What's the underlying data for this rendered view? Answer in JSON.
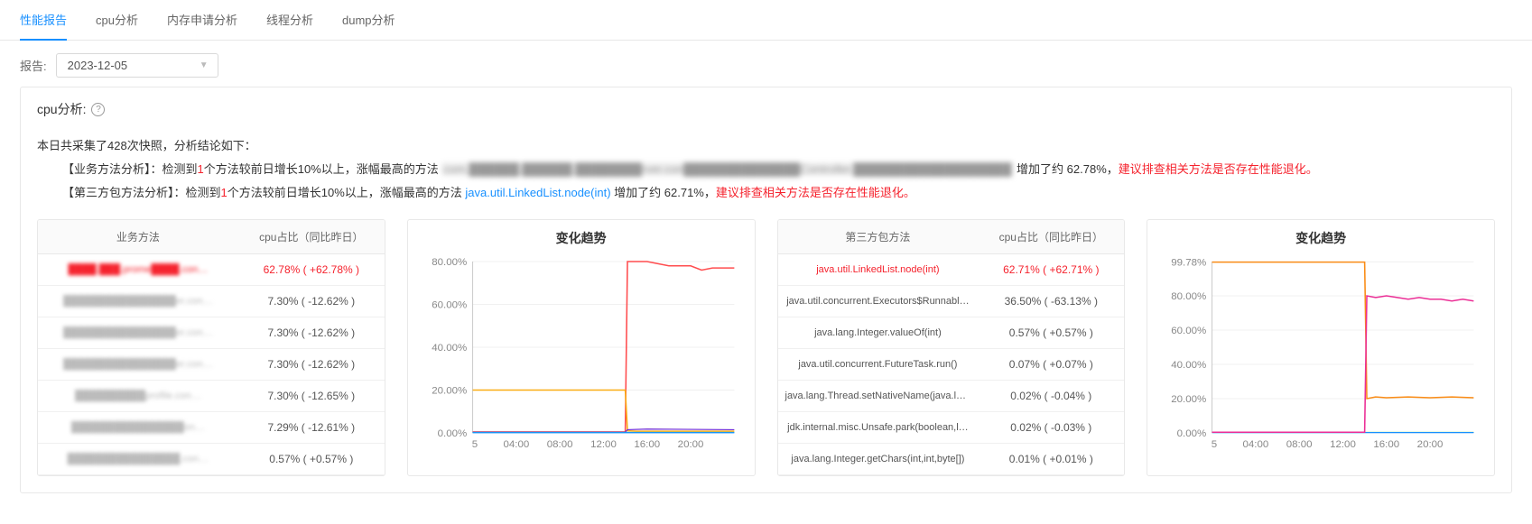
{
  "tabs": [
    {
      "label": "性能报告",
      "active": true
    },
    {
      "label": "cpu分析",
      "active": false
    },
    {
      "label": "内存申请分析",
      "active": false
    },
    {
      "label": "线程分析",
      "active": false
    },
    {
      "label": "dump分析",
      "active": false
    }
  ],
  "report": {
    "label": "报告:",
    "date": "2023-12-05"
  },
  "cpu_panel": {
    "title": "cpu分析:",
    "summary_intro": "本日共采集了428次快照，分析结论如下：",
    "biz_prefix": "【业务方法分析】：检测到",
    "biz_count": "1",
    "biz_mid": "个方法较前日增长10%以上，涨幅最高的方法 ",
    "biz_blur": "com.██████.██████.████████rver.con██████████████Controller.███████████████████",
    "biz_pct": " 增加了约 62.78%，",
    "biz_warn": "建议排查相关方法是否存在性能退化。",
    "third_prefix": "【第三方包方法分析】：检测到",
    "third_count": "1",
    "third_mid": "个方法较前日增长10%以上，涨幅最高的方法 ",
    "third_method": "java.util.LinkedList.node(int)",
    "third_pct": " 增加了约 62.71%，",
    "third_warn": "建议排查相关方法是否存在性能退化。"
  },
  "table1": {
    "col1": "业务方法",
    "col2": "cpu占比（同比昨日）",
    "rows": [
      {
        "method": "████.███.prome████.con…",
        "pct": "62.78% ( +62.78% )",
        "hl": true,
        "blur": true
      },
      {
        "method": "████████████████er.con…",
        "pct": "7.30% ( -12.62% )",
        "hl": false,
        "blur": true
      },
      {
        "method": "████████████████er.con…",
        "pct": "7.30% ( -12.62% )",
        "hl": false,
        "blur": true
      },
      {
        "method": "████████████████er.con…",
        "pct": "7.30% ( -12.62% )",
        "hl": false,
        "blur": true
      },
      {
        "method": "██████████profile.con…",
        "pct": "7.30% ( -12.65% )",
        "hl": false,
        "blur": true
      },
      {
        "method": "████████████████on…",
        "pct": "7.29% ( -12.61% )",
        "hl": false,
        "blur": true
      },
      {
        "method": "████████████████.con…",
        "pct": "0.57% ( +0.57% )",
        "hl": false,
        "blur": true
      }
    ]
  },
  "chart1": {
    "title": "变化趋势",
    "ylim": [
      0,
      80
    ],
    "ytick_step": 20,
    "yformat": "%",
    "xticks": [
      "5",
      "04:00",
      "08:00",
      "12:00",
      "16:00",
      "20:00"
    ],
    "x_domain": [
      0,
      24
    ],
    "plot_bg": "#ffffff",
    "grid_color": "#f0f0f0",
    "series": [
      {
        "color": "#ff4d4f",
        "width": 1.5,
        "points": [
          [
            0,
            0.5
          ],
          [
            14,
            0.5
          ],
          [
            14.2,
            80
          ],
          [
            15,
            80
          ],
          [
            16,
            80
          ],
          [
            17,
            79
          ],
          [
            18,
            78
          ],
          [
            19,
            78
          ],
          [
            20,
            78
          ],
          [
            21,
            76
          ],
          [
            22,
            77
          ],
          [
            23,
            77
          ],
          [
            24,
            77
          ]
        ]
      },
      {
        "color": "#faad14",
        "width": 1.5,
        "points": [
          [
            0,
            20
          ],
          [
            2,
            20
          ],
          [
            4,
            20
          ],
          [
            6,
            20
          ],
          [
            8,
            20
          ],
          [
            10,
            20
          ],
          [
            12,
            20
          ],
          [
            14,
            20
          ],
          [
            14.2,
            1
          ],
          [
            15,
            0.8
          ],
          [
            24,
            0.8
          ]
        ]
      },
      {
        "color": "#722ed1",
        "width": 1.2,
        "points": [
          [
            0,
            0.3
          ],
          [
            14,
            0.3
          ],
          [
            14.2,
            1.5
          ],
          [
            16,
            1.8
          ],
          [
            24,
            1.5
          ]
        ]
      },
      {
        "color": "#13c2c2",
        "width": 1.2,
        "points": [
          [
            0,
            0.2
          ],
          [
            24,
            0.2
          ]
        ]
      },
      {
        "color": "#1890ff",
        "width": 1.2,
        "points": [
          [
            0,
            0.1
          ],
          [
            24,
            0.1
          ]
        ]
      }
    ]
  },
  "table2": {
    "col1": "第三方包方法",
    "col2": "cpu占比（同比昨日）",
    "rows": [
      {
        "method": "java.util.LinkedList.node(int)",
        "pct": "62.71% ( +62.71% )",
        "hl": true
      },
      {
        "method": "java.util.concurrent.Executors$Runnabl…",
        "pct": "36.50% ( -63.13% )",
        "hl": false
      },
      {
        "method": "java.lang.Integer.valueOf(int)",
        "pct": "0.57% ( +0.57% )",
        "hl": false
      },
      {
        "method": "java.util.concurrent.FutureTask.run()",
        "pct": "0.07% ( +0.07% )",
        "hl": false
      },
      {
        "method": "java.lang.Thread.setNativeName(java.la…",
        "pct": "0.02% ( -0.04% )",
        "hl": false
      },
      {
        "method": "jdk.internal.misc.Unsafe.park(boolean,l…",
        "pct": "0.02% ( -0.03% )",
        "hl": false
      },
      {
        "method": "java.lang.Integer.getChars(int,int,byte[])",
        "pct": "0.01% ( +0.01% )",
        "hl": false
      }
    ]
  },
  "chart2": {
    "title": "变化趋势",
    "ylim": [
      0,
      100
    ],
    "yticks": [
      0,
      20,
      40,
      60,
      80,
      99.78
    ],
    "yformat": "%",
    "xticks": [
      "5",
      "04:00",
      "08:00",
      "12:00",
      "16:00",
      "20:00"
    ],
    "x_domain": [
      0,
      24
    ],
    "plot_bg": "#ffffff",
    "grid_color": "#f0f0f0",
    "series": [
      {
        "color": "#52c41a",
        "width": 1.2,
        "points": [
          [
            0,
            0.3
          ],
          [
            24,
            0.3
          ]
        ]
      },
      {
        "color": "#1890ff",
        "width": 1.2,
        "points": [
          [
            0,
            0.2
          ],
          [
            24,
            0.2
          ]
        ]
      },
      {
        "color": "#fa8c16",
        "width": 1.5,
        "points": [
          [
            0,
            99.7
          ],
          [
            2,
            99.7
          ],
          [
            4,
            99.7
          ],
          [
            6,
            99.7
          ],
          [
            8,
            99.7
          ],
          [
            10,
            99.7
          ],
          [
            12,
            99.7
          ],
          [
            14,
            99.7
          ],
          [
            14.2,
            20
          ],
          [
            15,
            21
          ],
          [
            16,
            20.5
          ],
          [
            18,
            21
          ],
          [
            20,
            20.5
          ],
          [
            22,
            21
          ],
          [
            24,
            20.5
          ]
        ]
      },
      {
        "color": "#eb2f96",
        "width": 1.5,
        "points": [
          [
            0,
            0.4
          ],
          [
            14,
            0.4
          ],
          [
            14.2,
            80
          ],
          [
            15,
            79
          ],
          [
            16,
            80
          ],
          [
            17,
            79
          ],
          [
            18,
            78
          ],
          [
            19,
            79
          ],
          [
            20,
            78
          ],
          [
            21,
            78
          ],
          [
            22,
            77
          ],
          [
            23,
            78
          ],
          [
            24,
            77
          ]
        ]
      }
    ]
  }
}
